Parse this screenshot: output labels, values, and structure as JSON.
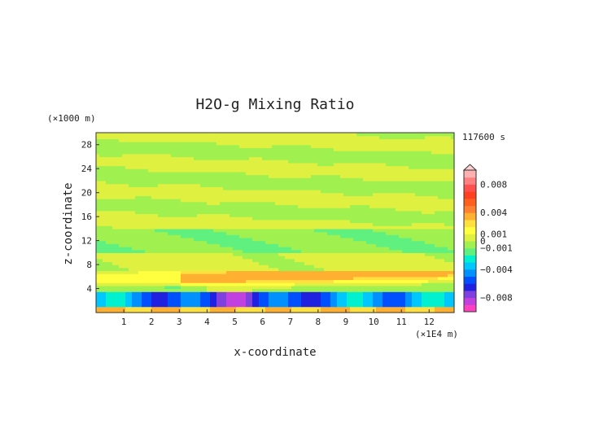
{
  "chart_data": {
    "type": "heatmap",
    "title": "H2O-g Mixing Ratio",
    "xlabel": "x-coordinate",
    "ylabel": "z-coordinate",
    "x_unit": "(×1E4 m)",
    "y_unit": "(×1000 m)",
    "time_label": "117600 s",
    "xlim": [
      0,
      12.9
    ],
    "ylim": [
      0,
      30
    ],
    "x_ticks": [
      "1",
      "2",
      "3",
      "4",
      "5",
      "6",
      "7",
      "8",
      "9",
      "10",
      "11",
      "12"
    ],
    "y_ticks": [
      "4",
      "8",
      "12",
      "16",
      "20",
      "24",
      "28"
    ],
    "colorbar": {
      "labels": [
        "0.008",
        "0.004",
        "0.001",
        "0",
        "−0.001",
        "−0.004",
        "−0.008"
      ],
      "label_values": [
        0.008,
        0.004,
        0.001,
        0,
        -0.001,
        -0.004,
        -0.008
      ],
      "range": [
        -0.01,
        0.01
      ],
      "colors": [
        "#ff40c0",
        "#c040e0",
        "#8040e0",
        "#2020e0",
        "#0050ff",
        "#0090ff",
        "#00c8ff",
        "#00f0d0",
        "#60f080",
        "#a0f050",
        "#e0f040",
        "#ffff40",
        "#ffe040",
        "#ffb030",
        "#ff8030",
        "#ff6020",
        "#ff4020",
        "#ff5050",
        "#ff8080",
        "#ffb0b0"
      ]
    },
    "bands": [
      {
        "z": [
          0,
          1.2
        ],
        "class": "positive-orange"
      },
      {
        "z": [
          1.2,
          3.5
        ],
        "class": "negative-blue"
      },
      {
        "z": [
          3.5,
          7
        ],
        "class": "positive-orange"
      },
      {
        "z": [
          7,
          10
        ],
        "class": "near-zero-yellow"
      },
      {
        "z": [
          10,
          14
        ],
        "class": "near-zero-green"
      },
      {
        "z": [
          14,
          30
        ],
        "class": "alternating-yellow-green"
      }
    ]
  }
}
